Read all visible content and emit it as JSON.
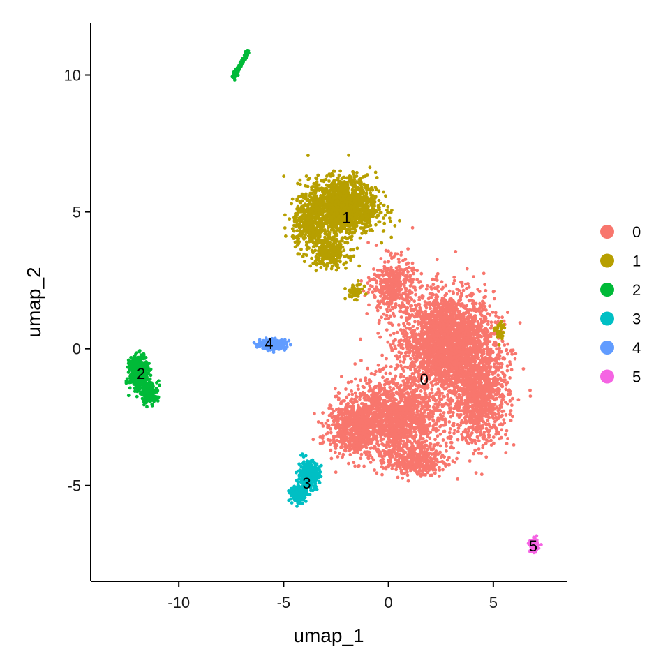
{
  "chart_data": {
    "type": "scatter",
    "xlabel": "umap_1",
    "ylabel": "umap_2",
    "xlim": [
      -14.2,
      8.5
    ],
    "ylim": [
      -8.5,
      11.9
    ],
    "x_ticks": [
      -10,
      -5,
      0,
      5
    ],
    "y_ticks": [
      -5,
      0,
      5,
      10
    ],
    "legend_position": "right",
    "grid": false,
    "series": [
      {
        "name": "0",
        "color": "#F8766D",
        "label_x": 1.7,
        "label_y": -1.1
      },
      {
        "name": "1",
        "color": "#B79F00",
        "label_x": -2.0,
        "label_y": 4.8
      },
      {
        "name": "2",
        "color": "#00BA38",
        "label_x": -11.8,
        "label_y": -0.9
      },
      {
        "name": "3",
        "color": "#00BFC4",
        "label_x": -3.9,
        "label_y": -4.9
      },
      {
        "name": "4",
        "color": "#619CFF",
        "label_x": -5.7,
        "label_y": 0.2
      },
      {
        "name": "5",
        "color": "#F564E3",
        "label_x": 6.9,
        "label_y": -7.2
      }
    ]
  }
}
